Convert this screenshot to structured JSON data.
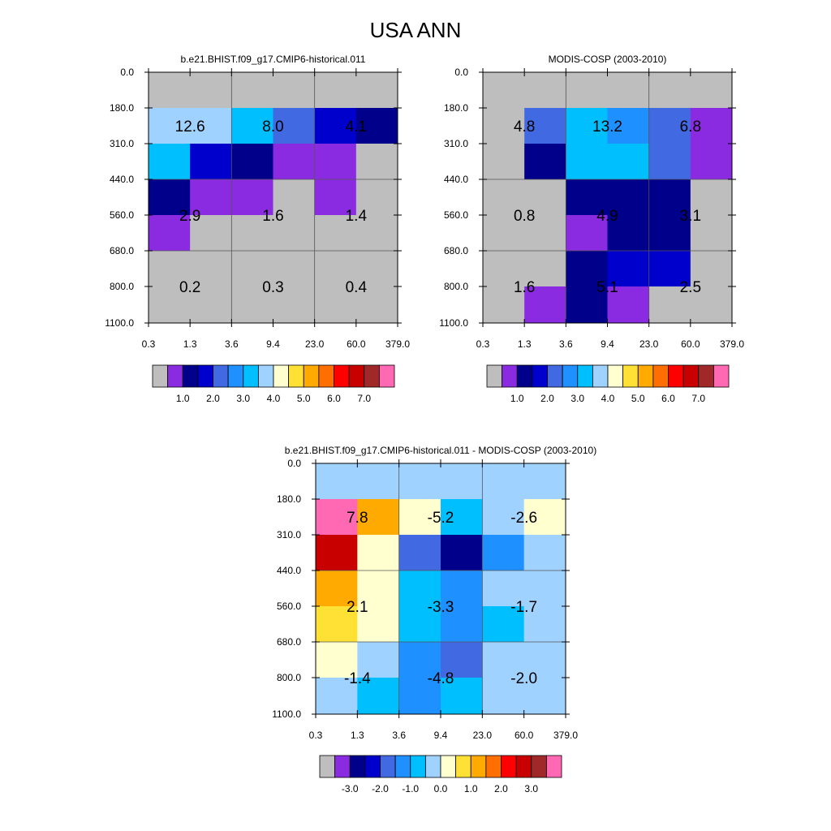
{
  "title": "USA ANN",
  "colors": {
    "gray": "#bebebe",
    "palette": [
      "#bebebe",
      "#8a2be2",
      "#00008b",
      "#0000cd",
      "#4169e1",
      "#1e90ff",
      "#00bfff",
      "#a0d2ff",
      "#ffffd0",
      "#ffe135",
      "#ffaa00",
      "#ff6e00",
      "#ff0000",
      "#c80000",
      "#a02828",
      "#ff69b4"
    ]
  },
  "chart_data": [
    {
      "type": "heatmap",
      "title": "b.e21.BHIST.f09_g17.CMIP6-historical.011",
      "x_ticks": [
        "0.3",
        "1.3",
        "3.6",
        "9.4",
        "23.0",
        "60.0",
        "379.0"
      ],
      "y_ticks": [
        "0.0",
        "180.0",
        "310.0",
        "440.0",
        "560.0",
        "680.0",
        "800.0",
        "1100.0"
      ],
      "cell_color_index": [
        [
          0,
          0,
          0,
          0,
          0,
          0
        ],
        [
          7,
          7,
          6,
          4,
          3,
          2
        ],
        [
          6,
          3,
          2,
          1,
          1,
          0
        ],
        [
          2,
          1,
          1,
          0,
          1,
          0
        ],
        [
          1,
          0,
          0,
          0,
          0,
          0
        ],
        [
          0,
          0,
          0,
          0,
          0,
          0
        ],
        [
          0,
          0,
          0,
          0,
          0,
          0
        ]
      ],
      "group_labels": [
        {
          "row": 1,
          "col": 0,
          "text": "12.6"
        },
        {
          "row": 1,
          "col": 1,
          "text": "8.0"
        },
        {
          "row": 1,
          "col": 2,
          "text": "4.1"
        },
        {
          "row": 3,
          "col": 0,
          "text": "2.9"
        },
        {
          "row": 3,
          "col": 1,
          "text": "1.6"
        },
        {
          "row": 3,
          "col": 2,
          "text": "1.4"
        },
        {
          "row": 5,
          "col": 0,
          "text": "0.2"
        },
        {
          "row": 5,
          "col": 1,
          "text": "0.3"
        },
        {
          "row": 5,
          "col": 2,
          "text": "0.4"
        }
      ],
      "colorbar": {
        "labels": [
          "1.0",
          "2.0",
          "3.0",
          "4.0",
          "5.0",
          "6.0",
          "7.0"
        ],
        "label_start_box": 2
      }
    },
    {
      "type": "heatmap",
      "title": "MODIS-COSP (2003-2010)",
      "x_ticks": [
        "0.3",
        "1.3",
        "3.6",
        "9.4",
        "23.0",
        "60.0",
        "379.0"
      ],
      "y_ticks": [
        "0.0",
        "180.0",
        "310.0",
        "440.0",
        "560.0",
        "680.0",
        "800.0",
        "1100.0"
      ],
      "cell_color_index": [
        [
          0,
          0,
          0,
          0,
          0,
          0
        ],
        [
          0,
          4,
          6,
          5,
          4,
          1
        ],
        [
          0,
          2,
          6,
          6,
          4,
          1
        ],
        [
          0,
          0,
          2,
          2,
          2,
          0
        ],
        [
          0,
          0,
          1,
          2,
          2,
          0
        ],
        [
          0,
          0,
          2,
          3,
          3,
          0
        ],
        [
          0,
          1,
          2,
          1,
          0,
          0
        ]
      ],
      "group_labels": [
        {
          "row": 1,
          "col": 0,
          "text": "4.8"
        },
        {
          "row": 1,
          "col": 1,
          "text": "13.2"
        },
        {
          "row": 1,
          "col": 2,
          "text": "6.8"
        },
        {
          "row": 3,
          "col": 0,
          "text": "0.8"
        },
        {
          "row": 3,
          "col": 1,
          "text": "4.9"
        },
        {
          "row": 3,
          "col": 2,
          "text": "3.1"
        },
        {
          "row": 5,
          "col": 0,
          "text": "1.6"
        },
        {
          "row": 5,
          "col": 1,
          "text": "5.1"
        },
        {
          "row": 5,
          "col": 2,
          "text": "2.5"
        }
      ],
      "colorbar": {
        "labels": [
          "1.0",
          "2.0",
          "3.0",
          "4.0",
          "5.0",
          "6.0",
          "7.0"
        ],
        "label_start_box": 2
      }
    },
    {
      "type": "heatmap",
      "title": "b.e21.BHIST.f09_g17.CMIP6-historical.011 - MODIS-COSP (2003-2010)",
      "x_ticks": [
        "0.3",
        "1.3",
        "3.6",
        "9.4",
        "23.0",
        "60.0",
        "379.0"
      ],
      "y_ticks": [
        "0.0",
        "180.0",
        "310.0",
        "440.0",
        "560.0",
        "680.0",
        "800.0",
        "1100.0"
      ],
      "cell_color_index": [
        [
          7,
          7,
          7,
          7,
          7,
          7
        ],
        [
          15,
          10,
          8,
          6,
          7,
          8
        ],
        [
          13,
          8,
          4,
          2,
          5,
          7
        ],
        [
          10,
          8,
          6,
          5,
          7,
          7
        ],
        [
          9,
          8,
          6,
          5,
          6,
          7
        ],
        [
          8,
          7,
          5,
          4,
          7,
          7
        ],
        [
          7,
          6,
          5,
          6,
          7,
          7
        ]
      ],
      "group_labels": [
        {
          "row": 1,
          "col": 0,
          "text": "7.8"
        },
        {
          "row": 1,
          "col": 1,
          "text": "-5.2"
        },
        {
          "row": 1,
          "col": 2,
          "text": "-2.6"
        },
        {
          "row": 3,
          "col": 0,
          "text": "2.1"
        },
        {
          "row": 3,
          "col": 1,
          "text": "-3.3"
        },
        {
          "row": 3,
          "col": 2,
          "text": "-1.7"
        },
        {
          "row": 5,
          "col": 0,
          "text": "-1.4"
        },
        {
          "row": 5,
          "col": 1,
          "text": "-4.8"
        },
        {
          "row": 5,
          "col": 2,
          "text": "-2.0"
        }
      ],
      "colorbar": {
        "labels": [
          "-3.0",
          "-2.0",
          "-1.0",
          "0.0",
          "1.0",
          "2.0",
          "3.0"
        ],
        "label_start_box": 2
      }
    }
  ]
}
